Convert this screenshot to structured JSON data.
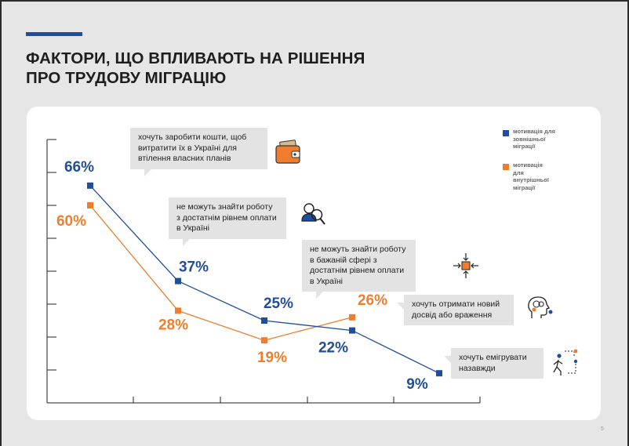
{
  "header": {
    "title_line1": "ФАКТОРИ, ЩО ВПЛИВАЮТЬ НА РІШЕННЯ",
    "title_line2": "ПРО ТРУДОВУ МІГРАЦІЮ"
  },
  "legend": {
    "external": "мотивація для зовнішньої міграції",
    "internal": "мотивація для внутрішньої міграції"
  },
  "callouts": {
    "c1": "хочуть заробити кошти, щоб витратити їх в Україні для втілення власних планів",
    "c2": "не можуть знайти роботу з достатнім рівнем оплати в Україні",
    "c3": "не можуть знайти роботу в бажаній сфері з достатнім рівнем оплати в Україні",
    "c4": "хочуть отримати новий досвід або враження",
    "c5": "хочуть емігрувати назавжди"
  },
  "page_number": "5",
  "colors": {
    "external": "#1f4e9c",
    "internal": "#f07d2d",
    "accent": "#1f4e9c"
  },
  "chart_data": {
    "type": "line",
    "categories": [
      "хочуть заробити кошти, щоб витратити їх в Україні для втілення власних планів",
      "не можуть знайти роботу з достатнім рівнем оплати в Україні",
      "не можуть знайти роботу в бажаній сфері з достатнім рівнем оплати в Україні",
      "хочуть отримати новий досвід або враження",
      "хочуть емігрувати назавжди"
    ],
    "series": [
      {
        "name": "мотивація для зовнішньої міграції",
        "color": "#1f4e9c",
        "values": [
          66,
          37,
          25,
          22,
          9
        ],
        "labels": [
          "66%",
          "37%",
          "25%",
          "22%",
          "9%"
        ]
      },
      {
        "name": "мотивація для внутрішньої міграції",
        "color": "#f07d2d",
        "values": [
          60,
          28,
          19,
          26,
          null
        ],
        "labels": [
          "60%",
          "28%",
          "19%",
          "26%",
          ""
        ]
      }
    ],
    "ylim": [
      0,
      80
    ],
    "grid": false
  }
}
